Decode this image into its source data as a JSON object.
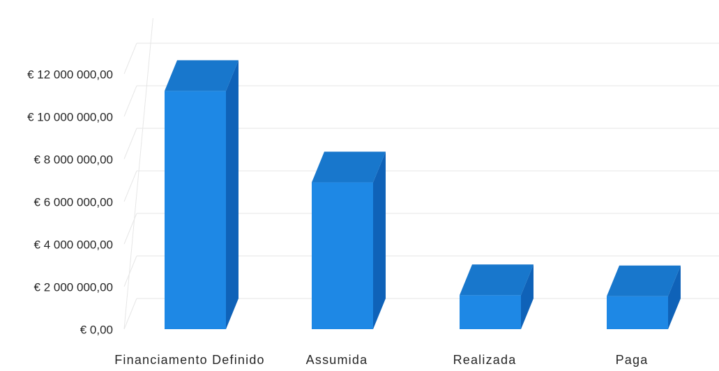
{
  "chart_data": {
    "type": "bar",
    "title": "",
    "xlabel": "",
    "ylabel": "",
    "categories": [
      "Financiamento Definido",
      "Assumida",
      "Realizada",
      "Paga"
    ],
    "values": [
      11200000,
      6900000,
      1600000,
      1550000
    ],
    "ylim": [
      0,
      12000000
    ],
    "y_ticks": [
      0,
      2000000,
      4000000,
      6000000,
      8000000,
      10000000,
      12000000
    ],
    "y_tick_labels": [
      "€ 0,00",
      "€ 2 000 000,00",
      "€ 4 000 000,00",
      "€ 6 000 000,00",
      "€ 8 000 000,00",
      "€ 10 000 000,00",
      "€ 12 000 000,00"
    ],
    "grid": true,
    "style": "3d-column",
    "colors": {
      "bar_front": "#1E88E5",
      "bar_top": "#1877CC",
      "bar_side": "#0F62B8",
      "grid": "#E6E6E6",
      "text": "#262626"
    }
  }
}
